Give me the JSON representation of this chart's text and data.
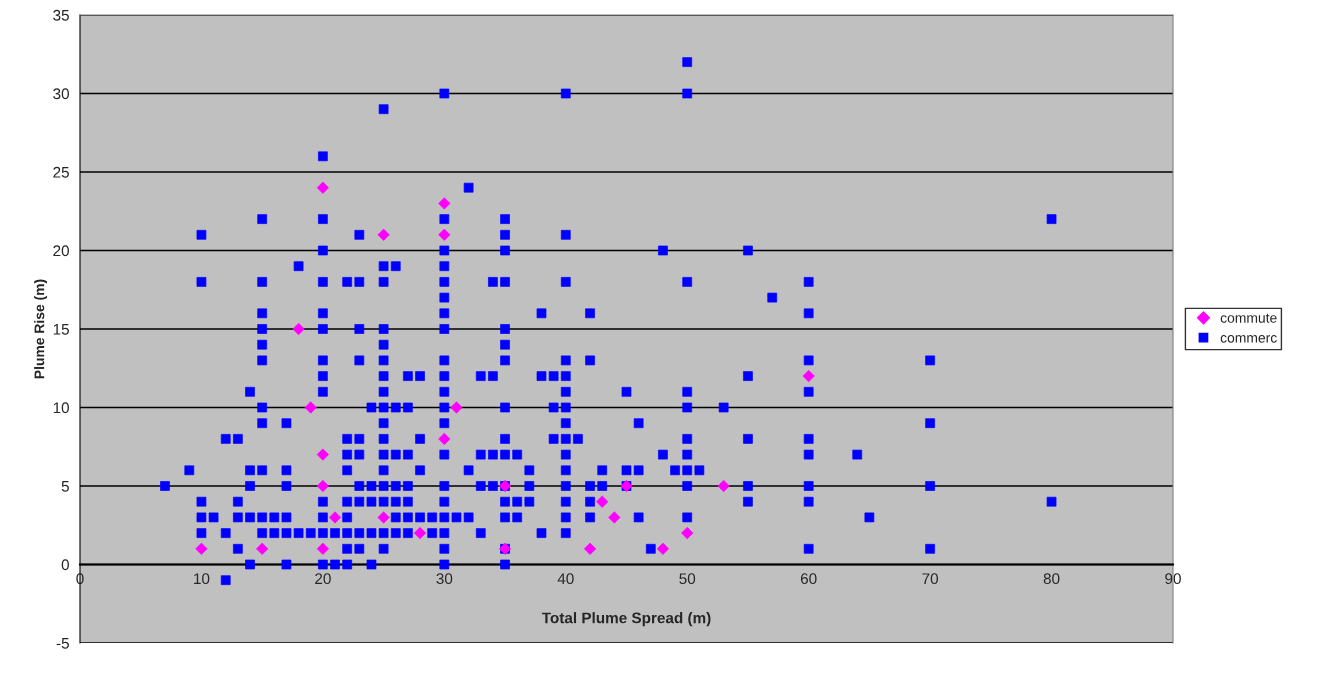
{
  "chart_data": {
    "type": "scatter",
    "xlabel": "Total Plume Spread (m)",
    "ylabel": "Plume Rise (m)",
    "xlim": [
      0,
      90
    ],
    "xticks": [
      0,
      10,
      20,
      30,
      40,
      50,
      60,
      70,
      80,
      90
    ],
    "ylim": [
      -5,
      35
    ],
    "yticks": [
      -5,
      0,
      5,
      10,
      15,
      20,
      25,
      30,
      35
    ],
    "grid": "y",
    "legend": "right",
    "series": [
      {
        "name": "commute",
        "color": "#ff00ff",
        "marker": "diamond",
        "x": [
          20,
          30,
          25,
          30,
          18,
          19,
          31,
          30,
          20,
          60,
          20,
          35,
          45,
          53,
          21,
          25,
          43,
          44,
          28,
          50,
          10,
          15,
          20,
          35,
          42,
          48
        ],
        "values": [
          24,
          23,
          21,
          21,
          15,
          10,
          10,
          8,
          7,
          12,
          5,
          5,
          5,
          5,
          3,
          3,
          4,
          3,
          2,
          2,
          1,
          1,
          1,
          1,
          1,
          1
        ]
      },
      {
        "name": "commerc",
        "color": "#0000ff",
        "marker": "square",
        "x": [
          7,
          9,
          10,
          10,
          10,
          10,
          10,
          11,
          12,
          12,
          12,
          13,
          13,
          13,
          13,
          14,
          14,
          14,
          14,
          14,
          15,
          15,
          15,
          15,
          15,
          15,
          15,
          15,
          15,
          15,
          15,
          16,
          16,
          17,
          17,
          17,
          17,
          17,
          17,
          18,
          18,
          19,
          20,
          20,
          20,
          20,
          20,
          20,
          20,
          20,
          20,
          20,
          20,
          20,
          20,
          21,
          21,
          22,
          22,
          22,
          22,
          22,
          22,
          22,
          22,
          22,
          23,
          23,
          23,
          23,
          23,
          23,
          23,
          23,
          23,
          23,
          24,
          24,
          24,
          24,
          24,
          25,
          25,
          25,
          25,
          25,
          25,
          25,
          25,
          25,
          25,
          25,
          25,
          25,
          25,
          25,
          25,
          25,
          26,
          26,
          26,
          26,
          26,
          26,
          26,
          27,
          27,
          27,
          27,
          27,
          27,
          27,
          28,
          28,
          28,
          28,
          29,
          29,
          30,
          30,
          30,
          30,
          30,
          30,
          30,
          30,
          30,
          30,
          30,
          30,
          30,
          30,
          30,
          30,
          30,
          30,
          30,
          30,
          31,
          32,
          32,
          32,
          33,
          33,
          33,
          33,
          34,
          34,
          34,
          34,
          35,
          35,
          35,
          35,
          35,
          35,
          35,
          35,
          35,
          35,
          35,
          35,
          35,
          35,
          35,
          36,
          36,
          36,
          37,
          37,
          37,
          38,
          38,
          38,
          39,
          39,
          39,
          40,
          40,
          40,
          40,
          40,
          40,
          40,
          40,
          40,
          40,
          40,
          40,
          40,
          40,
          40,
          41,
          42,
          42,
          42,
          42,
          42,
          43,
          43,
          45,
          45,
          45,
          46,
          46,
          46,
          47,
          48,
          48,
          49,
          50,
          50,
          50,
          50,
          50,
          50,
          50,
          50,
          50,
          50,
          51,
          53,
          55,
          55,
          55,
          55,
          55,
          57,
          60,
          60,
          60,
          60,
          60,
          60,
          60,
          60,
          60,
          64,
          65,
          70,
          70,
          70,
          70,
          80,
          80
        ],
        "values": [
          5,
          6,
          21,
          18,
          4,
          3,
          2,
          3,
          8,
          2,
          -1,
          8,
          4,
          3,
          1,
          11,
          6,
          5,
          3,
          0,
          22,
          18,
          16,
          15,
          14,
          13,
          10,
          9,
          6,
          3,
          2,
          3,
          2,
          9,
          6,
          5,
          3,
          2,
          0,
          19,
          2,
          2,
          26,
          22,
          20,
          18,
          16,
          15,
          13,
          12,
          11,
          4,
          3,
          2,
          0,
          2,
          0,
          18,
          8,
          7,
          6,
          4,
          3,
          2,
          1,
          0,
          21,
          18,
          15,
          13,
          8,
          7,
          5,
          4,
          2,
          1,
          10,
          5,
          4,
          2,
          0,
          29,
          19,
          18,
          15,
          14,
          13,
          12,
          11,
          10,
          9,
          8,
          7,
          6,
          5,
          4,
          2,
          1,
          19,
          10,
          7,
          5,
          4,
          3,
          2,
          12,
          10,
          7,
          5,
          4,
          3,
          2,
          12,
          8,
          6,
          3,
          3,
          2,
          30,
          22,
          20,
          19,
          18,
          17,
          16,
          15,
          13,
          12,
          11,
          10,
          9,
          7,
          5,
          4,
          3,
          2,
          1,
          0,
          3,
          24,
          6,
          3,
          12,
          7,
          5,
          2,
          18,
          12,
          7,
          5,
          22,
          21,
          20,
          18,
          15,
          14,
          13,
          10,
          8,
          7,
          5,
          4,
          3,
          1,
          0,
          7,
          4,
          3,
          6,
          5,
          4,
          16,
          12,
          2,
          12,
          10,
          8,
          30,
          21,
          18,
          13,
          12,
          11,
          10,
          9,
          8,
          7,
          6,
          5,
          4,
          3,
          2,
          8,
          16,
          13,
          5,
          4,
          3,
          6,
          5,
          11,
          6,
          5,
          9,
          6,
          3,
          1,
          20,
          7,
          6,
          32,
          30,
          18,
          11,
          10,
          8,
          7,
          6,
          5,
          3,
          6,
          10,
          20,
          12,
          8,
          5,
          4,
          17,
          18,
          16,
          13,
          11,
          8,
          7,
          5,
          4,
          1,
          7,
          3,
          13,
          9,
          5,
          1,
          22,
          4
        ]
      }
    ]
  }
}
